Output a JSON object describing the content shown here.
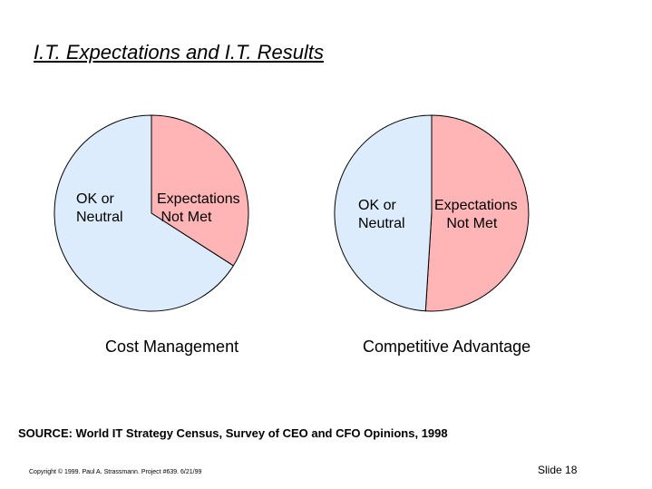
{
  "slide": {
    "title": "I.T. Expectations and I.T. Results",
    "source": "SOURCE: World IT Strategy Census, Survey of CEO and CFO Opinions, 1998",
    "copyright": "Copyright © 1999.  Paul A. Strassmann. Project #639.       6/21/99",
    "slide_number": "Slide 18"
  },
  "colors": {
    "expectations_not_met": "#ffb5b5",
    "ok_or_neutral": "#dcecfc",
    "outline": "#000000"
  },
  "chart_data": [
    {
      "type": "pie",
      "title": "Cost Management",
      "slices": [
        {
          "label": [
            "Expectations",
            " Not Met"
          ],
          "value": 34
        },
        {
          "label": [
            "OK or",
            "Neutral"
          ],
          "value": 66
        }
      ]
    },
    {
      "type": "pie",
      "title": "Competitive Advantage",
      "slices": [
        {
          "label": [
            "Expectations",
            "   Not Met"
          ],
          "value": 51
        },
        {
          "label": [
            "OK or",
            "Neutral"
          ],
          "value": 49
        }
      ]
    }
  ]
}
